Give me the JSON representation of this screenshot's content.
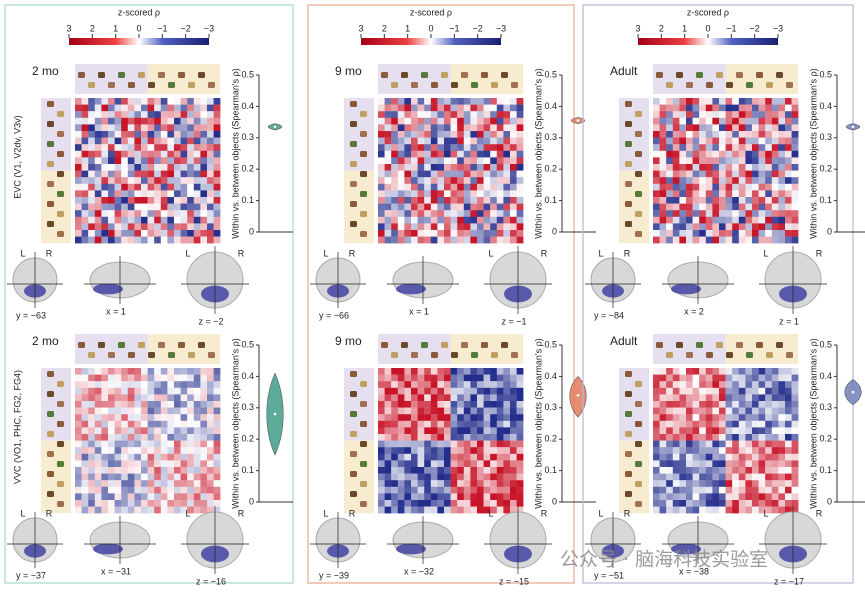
{
  "colorbar": {
    "title": "z-scored ρ",
    "lim": [
      3,
      -3
    ],
    "ticks": [
      3,
      2,
      1,
      0,
      {
        "value": -1,
        "label": "−1"
      },
      {
        "value": -2,
        "label": "−2"
      },
      {
        "value": -3,
        "label": "−3"
      }
    ]
  },
  "row_labels": [
    "EVC (V1, V2dv, V3v)",
    "VVC (VO1, PHC, FG2, FG4)"
  ],
  "axis_label": "Within vs. between objects (Spearman's ρ)",
  "ylim": [
    0,
    0.5
  ],
  "yticks": [
    0,
    0.1,
    0.2,
    0.3,
    0.4,
    0.5
  ],
  "brain_labels": [
    "L",
    "R"
  ],
  "panels": [
    {
      "age": "2 mo",
      "border": "#a8d8c8",
      "color": "#3e9c86",
      "rows": [
        {
          "value": 0.335,
          "range": [
            0.325,
            0.345
          ],
          "coords": [
            "y = −63",
            "x = 1",
            "z = −2"
          ]
        },
        {
          "value": 0.28,
          "range": [
            0.15,
            0.41
          ],
          "coords": [
            "y = −37",
            "x = −31",
            "z = −16"
          ]
        }
      ]
    },
    {
      "age": "9 mo",
      "border": "#e8a890",
      "color": "#e07a5a",
      "rows": [
        {
          "value": 0.355,
          "range": [
            0.345,
            0.365
          ],
          "coords": [
            "y = −66",
            "x = 1",
            "z = −1"
          ]
        },
        {
          "value": 0.34,
          "range": [
            0.27,
            0.4
          ],
          "coords": [
            "y = −39",
            "x = −32",
            "z = −15"
          ]
        }
      ]
    },
    {
      "age": "Adult",
      "border": "#b8b8d8",
      "color": "#7080b8",
      "rows": [
        {
          "value": 0.335,
          "range": [
            0.325,
            0.345
          ],
          "coords": [
            "y = −84",
            "x = 2",
            "z = 1"
          ]
        },
        {
          "value": 0.35,
          "range": [
            0.31,
            0.39
          ],
          "coords": [
            "y = −51",
            "x = −38",
            "z = −17"
          ]
        }
      ]
    }
  ],
  "watermark": "公众号 · 脑海科技实验室"
}
